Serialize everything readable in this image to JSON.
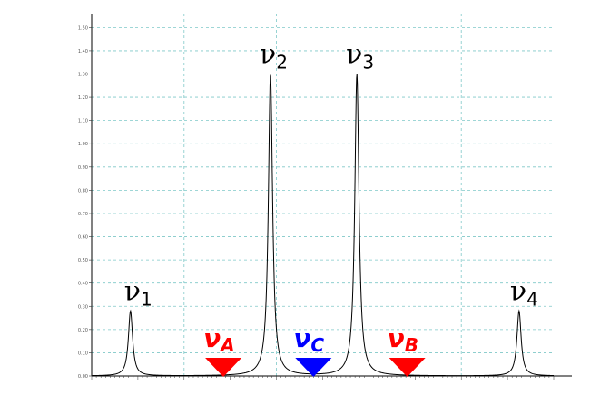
{
  "chart_data": {
    "type": "line",
    "xlim": [
      0,
      1
    ],
    "ylim": [
      0,
      1.56
    ],
    "y_ticks": [
      "0.00",
      "0.10",
      "0.20",
      "0.30",
      "0.40",
      "0.50",
      "0.60",
      "0.70",
      "0.80",
      "0.90",
      "1.00",
      "1.10",
      "1.20",
      "1.30",
      "1.40",
      "1.50"
    ],
    "grid": true,
    "grid_color": "#7fc8c8",
    "peaks": [
      {
        "name": "ν",
        "sub": "1",
        "x": 0.084,
        "height": 0.28
      },
      {
        "name": "ν",
        "sub": "2",
        "x": 0.387,
        "height": 1.3
      },
      {
        "name": "ν",
        "sub": "3",
        "x": 0.574,
        "height": 1.3
      },
      {
        "name": "ν",
        "sub": "4",
        "x": 0.925,
        "height": 0.28
      }
    ],
    "markers": [
      {
        "name": "ν",
        "sub": "A",
        "x": 0.285,
        "color": "#ff0000"
      },
      {
        "name": "ν",
        "sub": "C",
        "x": 0.48,
        "color": "#0000ff"
      },
      {
        "name": "ν",
        "sub": "B",
        "x": 0.683,
        "color": "#ff0000"
      }
    ]
  }
}
